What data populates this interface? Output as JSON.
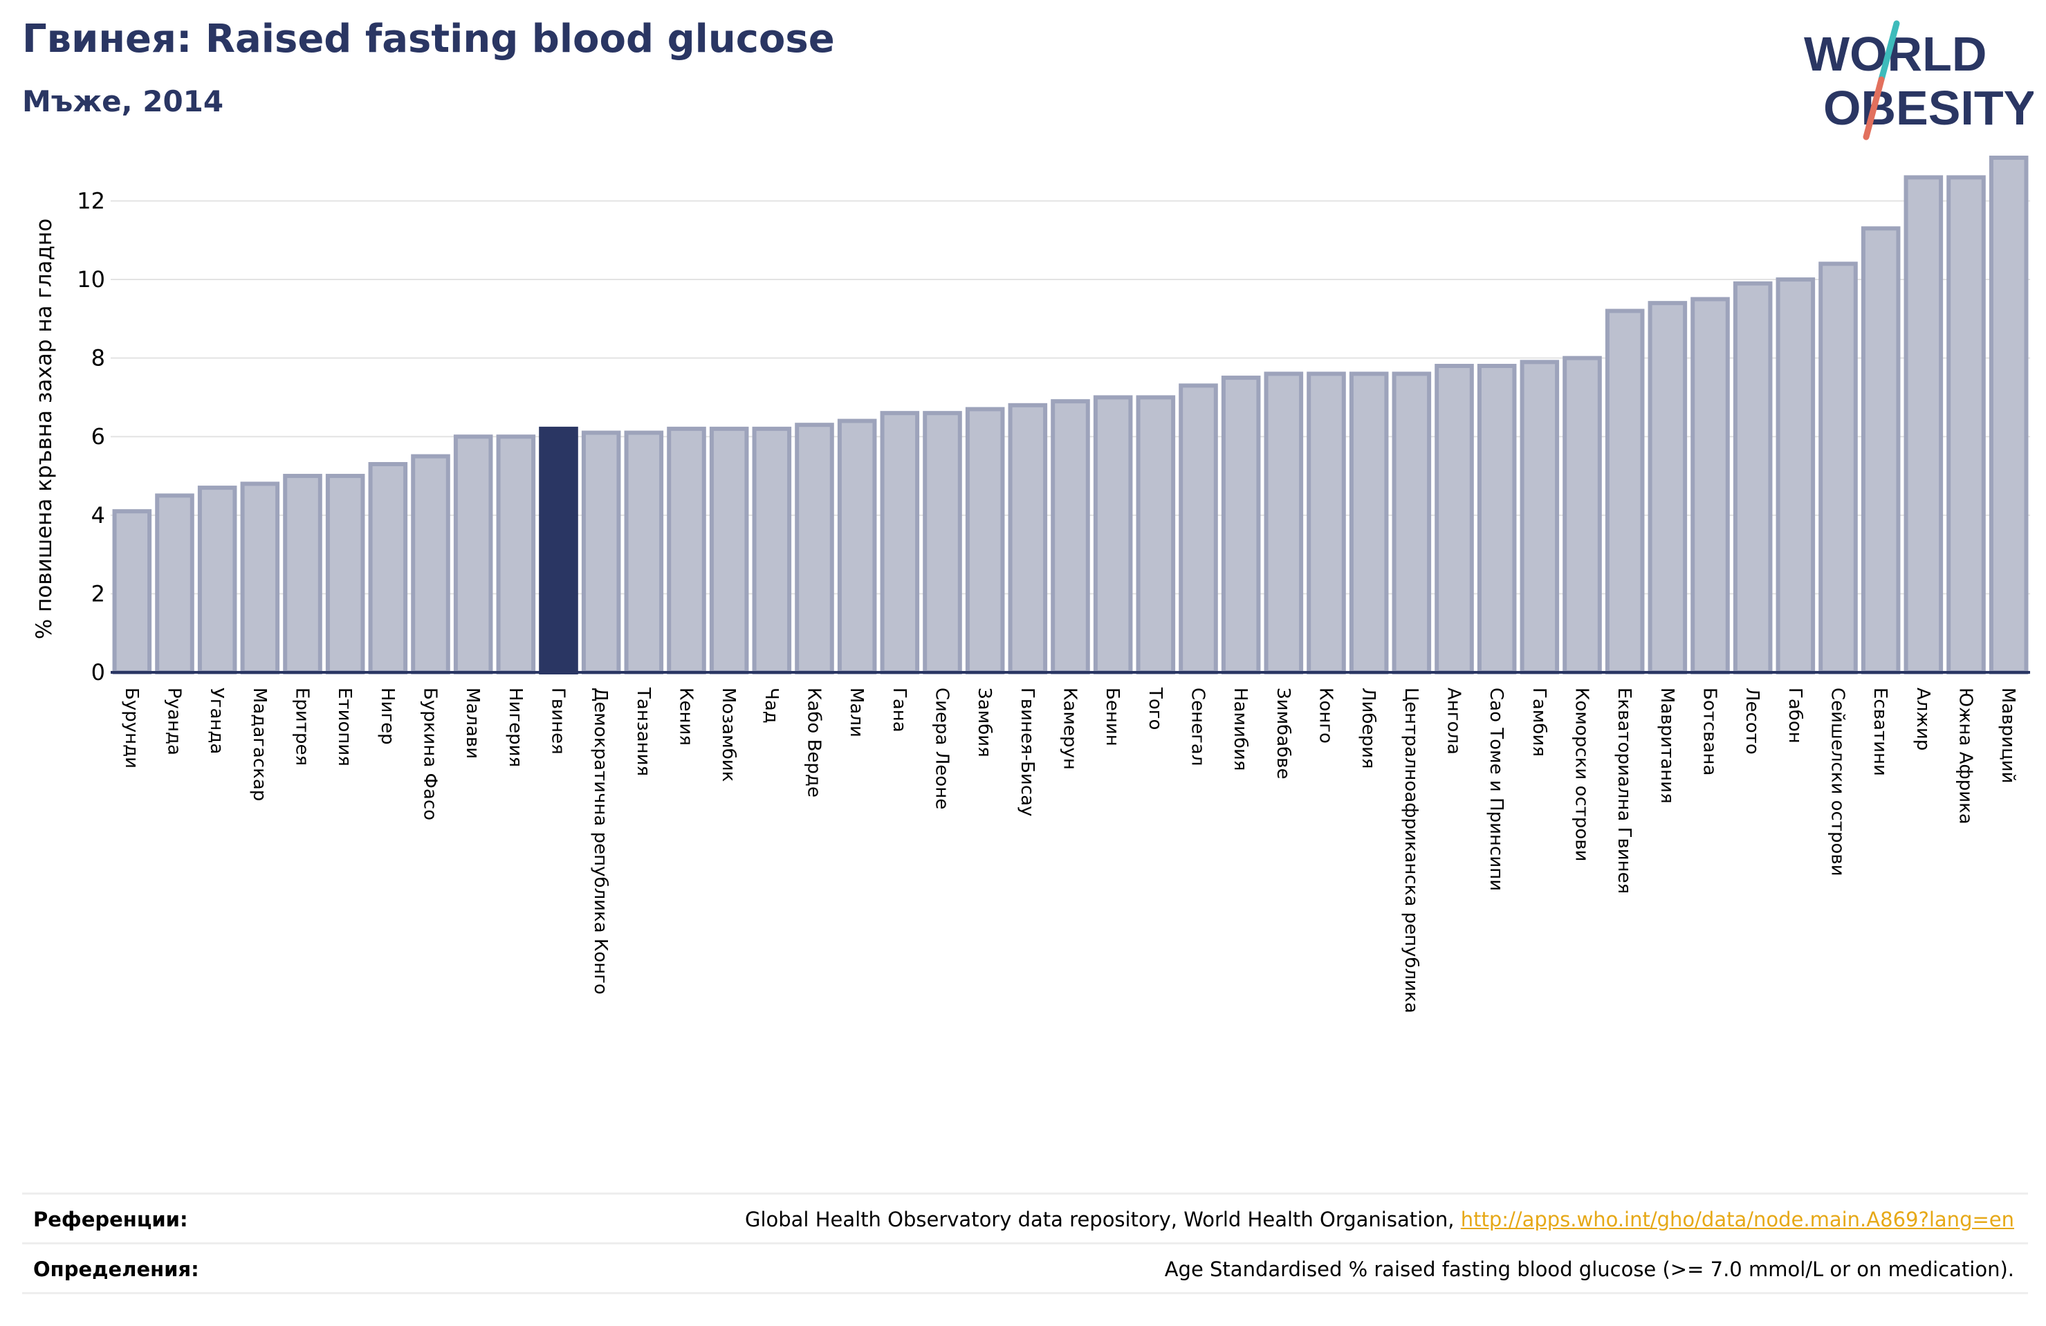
{
  "title": "Гвинея: Raised fasting blood glucose",
  "subtitle": "Мъже, 2014",
  "logo": {
    "line1": "WORLD",
    "line2": "OBESITY",
    "text_color": "#2a3663",
    "slash_colors": [
      "#e2705d",
      "#3dbbbb"
    ]
  },
  "chart_data": {
    "type": "bar",
    "ylabel": "% повишена кръвна захар на гладно",
    "xlabel": "",
    "ylim": [
      0,
      13.1
    ],
    "yticks": [
      0,
      2,
      4,
      6,
      8,
      10,
      12
    ],
    "grid": true,
    "highlight": "Гвинея",
    "colors": {
      "bar": "#bcc0cf",
      "bar_edge": "#9da3bb",
      "highlight": "#2a3663",
      "grid": "#e3e3e3",
      "axis": "#2a3663"
    },
    "categories": [
      "Бурунди",
      "Руанда",
      "Уганда",
      "Мадагаскар",
      "Еритрея",
      "Етиопия",
      "Нигер",
      "Буркина Фасо",
      "Малави",
      "Нигерия",
      "Гвинея",
      "Демократична република Конго",
      "Танзания",
      "Кения",
      "Мозамбик",
      "Чад",
      "Кабо Верде",
      "Мали",
      "Гана",
      "Сиера Леоне",
      "Замбия",
      "Гвинея-Бисау",
      "Камерун",
      "Бенин",
      "Того",
      "Сенегал",
      "Намибия",
      "Зимбабве",
      "Конго",
      "Либерия",
      "Централноафриканска република",
      "Ангола",
      "Сао Томе и Принсипи",
      "Гамбия",
      "Коморски острови",
      "Екваториална Гвинея",
      "Мавритания",
      "Ботсвана",
      "Лесото",
      "Габон",
      "Сейшелски острови",
      "Есватини",
      "Алжир",
      "Южна Африка",
      "Мавриций"
    ],
    "values": [
      4.1,
      4.5,
      4.7,
      4.8,
      5.0,
      5.0,
      5.3,
      5.5,
      6.0,
      6.0,
      6.2,
      6.1,
      6.1,
      6.2,
      6.2,
      6.2,
      6.3,
      6.4,
      6.6,
      6.6,
      6.7,
      6.8,
      6.9,
      7.0,
      7.0,
      7.3,
      7.5,
      7.6,
      7.6,
      7.6,
      7.6,
      7.8,
      7.8,
      7.9,
      8.0,
      9.2,
      9.4,
      9.5,
      9.9,
      10.0,
      10.4,
      11.3,
      12.6,
      12.6,
      13.1
    ]
  },
  "footer": {
    "references_label": "Референции:",
    "references_text": "Global Health Observatory data repository, World Health Organisation,",
    "references_link": "http://apps.who.int/gho/data/node.main.A869?lang=en",
    "definitions_label": "Определения:",
    "definitions_text": "Age Standardised % raised fasting blood glucose (>= 7.0 mmol/L or on medication)."
  }
}
